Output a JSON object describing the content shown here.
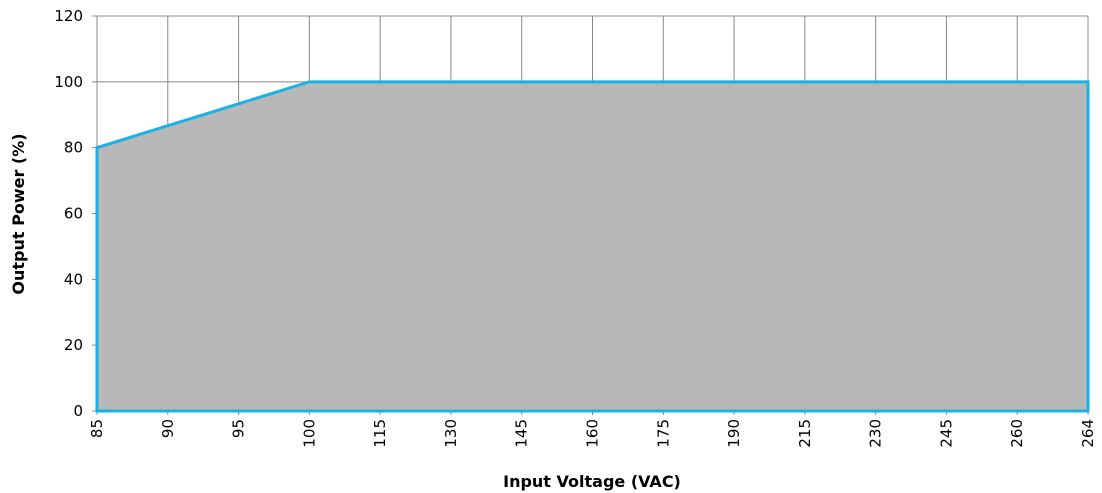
{
  "chart_data": {
    "type": "area",
    "xlabel": "Input Voltage (VAC)",
    "ylabel": "Output Power (%)",
    "categories": [
      "85",
      "90",
      "95",
      "100",
      "115",
      "130",
      "145",
      "160",
      "175",
      "190",
      "215",
      "230",
      "245",
      "260",
      "264"
    ],
    "x_axis_scale": "categorical",
    "series": [
      {
        "values": [
          80,
          86.67,
          93.33,
          100,
          100,
          100,
          100,
          100,
          100,
          100,
          100,
          100,
          100,
          100,
          100
        ]
      }
    ],
    "ylim": [
      0,
      120
    ],
    "y_ticks": [
      0,
      20,
      40,
      60,
      80,
      100,
      120
    ],
    "grid": true,
    "legend": "none",
    "colors": {
      "line": "#19b2e6",
      "fill": "#b8b8b8",
      "grid": "#888888"
    }
  }
}
